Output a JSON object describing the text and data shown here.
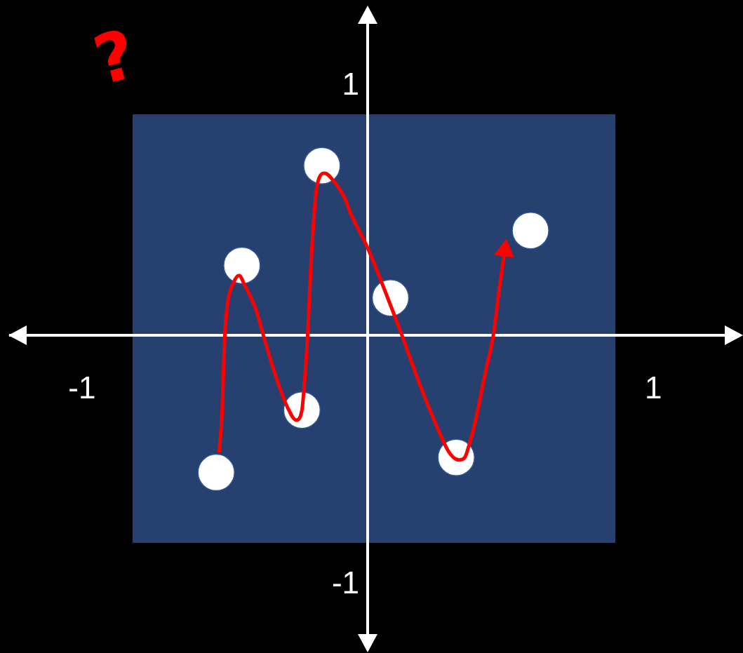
{
  "chart_data": {
    "type": "scatter",
    "annotations": [
      "?"
    ],
    "xlim": [
      -1.25,
      1.25
    ],
    "ylim": [
      -1.26,
      1.26
    ],
    "xticks": [
      -1,
      1
    ],
    "yticks": [
      -1,
      1
    ],
    "marker": "circle",
    "series": [
      {
        "color": "#ffffff",
        "x": [
          -0.53,
          -0.44,
          -0.23,
          -0.16,
          0.08,
          0.31,
          0.57
        ],
        "values": [
          -0.55,
          0.28,
          -0.3,
          0.68,
          0.15,
          -0.49,
          0.42
        ]
      },
      {
        "type": "line",
        "color": "#ff0000",
        "marker": "none",
        "x": [
          -0.52,
          -0.51,
          -0.5,
          -0.49,
          -0.47,
          -0.45,
          -0.43,
          -0.39,
          -0.36,
          -0.32,
          -0.28,
          -0.25,
          -0.23,
          -0.22,
          -0.21,
          -0.2,
          -0.19,
          -0.18,
          -0.17,
          -0.15,
          -0.12,
          -0.08,
          -0.06,
          0.0,
          0.06,
          0.12,
          0.18,
          0.24,
          0.28,
          0.3,
          0.32,
          0.34,
          0.35,
          0.38,
          0.41,
          0.44,
          0.46,
          0.48
        ],
        "values": [
          -0.47,
          -0.32,
          0.0,
          0.13,
          0.21,
          0.24,
          0.2,
          0.1,
          -0.02,
          -0.17,
          -0.29,
          -0.34,
          -0.3,
          -0.17,
          0.0,
          0.25,
          0.44,
          0.58,
          0.63,
          0.65,
          0.62,
          0.55,
          0.49,
          0.35,
          0.18,
          0.0,
          -0.19,
          -0.36,
          -0.46,
          -0.49,
          -0.5,
          -0.49,
          -0.46,
          -0.33,
          -0.16,
          0.0,
          0.18,
          0.34
        ]
      }
    ]
  }
}
